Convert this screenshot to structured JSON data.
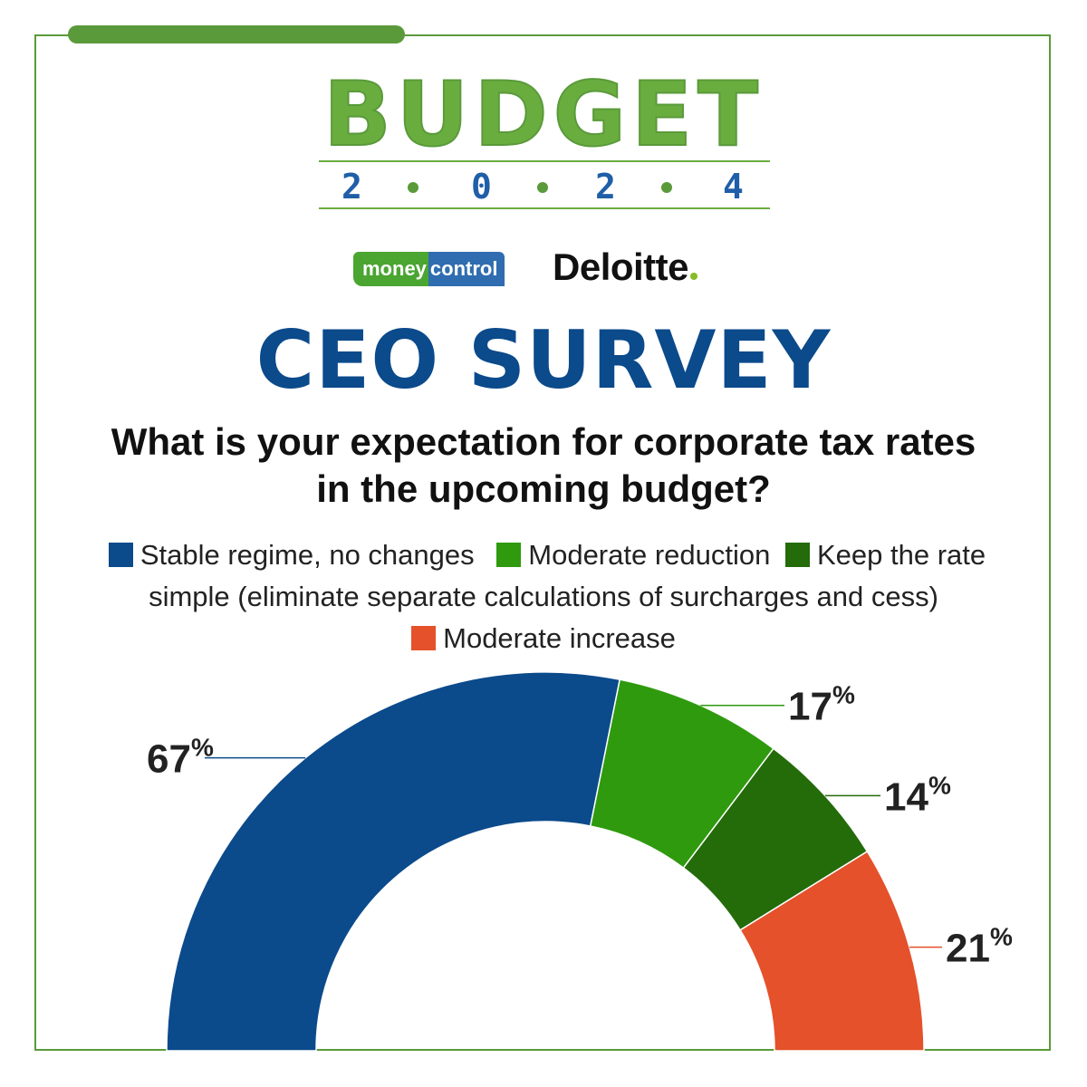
{
  "header": {
    "budget_word": "BUDGET",
    "year_digits": [
      "2",
      "0",
      "2",
      "4"
    ],
    "logo_moneycontrol_a": "money",
    "logo_moneycontrol_b": "control",
    "logo_deloitte": "Deloitte",
    "title": "CEO SURVEY"
  },
  "colors": {
    "frame": "#5a9a3a",
    "title": "#0b4a8b",
    "budget_green": "#6aad3f"
  },
  "chart_data": {
    "type": "pie",
    "subtype": "semicircle-donut",
    "title": "What is your expectation for corporate tax rates in the upcoming budget?",
    "legend_position": "top",
    "unit": "%",
    "series": [
      {
        "name": "Stable regime, no changes",
        "value": 67,
        "label": "67",
        "color": "#0b4a8b"
      },
      {
        "name": "Moderate reduction",
        "value": 17,
        "label": "17",
        "color": "#2f9a0e"
      },
      {
        "name": "Keep the rate simple (eliminate separate calculations of surcharges and cess)",
        "value": 14,
        "label": "14",
        "color": "#246b0a"
      },
      {
        "name": "Moderate increase",
        "value": 21,
        "label": "21",
        "color": "#e4512a"
      }
    ]
  }
}
